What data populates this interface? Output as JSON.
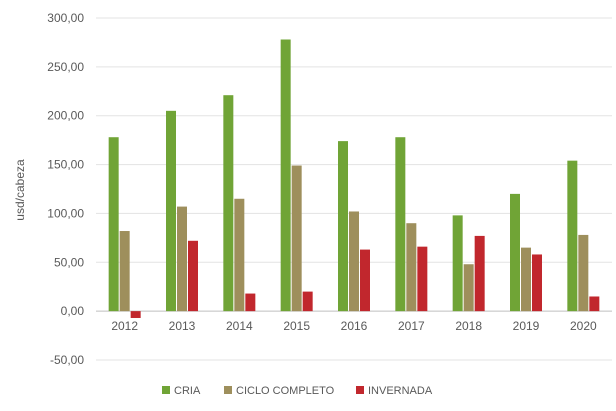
{
  "chart_data": {
    "type": "bar",
    "title": "",
    "xlabel": "",
    "ylabel": "usd/cabeza",
    "ylim": [
      -50,
      300
    ],
    "yticks": [
      -50,
      0,
      50,
      100,
      150,
      200,
      250,
      300
    ],
    "ytick_labels": [
      "-50,00",
      "0,00",
      "50,00",
      "100,00",
      "150,00",
      "200,00",
      "250,00",
      "300,00"
    ],
    "grid": true,
    "legend_position": "bottom",
    "categories": [
      "2012",
      "2013",
      "2014",
      "2015",
      "2016",
      "2017",
      "2018",
      "2019",
      "2020"
    ],
    "series": [
      {
        "name": "CRIA",
        "color": "#70a436",
        "values": [
          178,
          205,
          221,
          278,
          174,
          178,
          98,
          120,
          154
        ]
      },
      {
        "name": "CICLO COMPLETO",
        "color": "#9e8f5c",
        "values": [
          82,
          107,
          115,
          149,
          102,
          90,
          48,
          65,
          78
        ]
      },
      {
        "name": "INVERNADA",
        "color": "#c1272d",
        "values": [
          -7,
          72,
          18,
          20,
          63,
          66,
          77,
          58,
          15
        ]
      }
    ]
  }
}
